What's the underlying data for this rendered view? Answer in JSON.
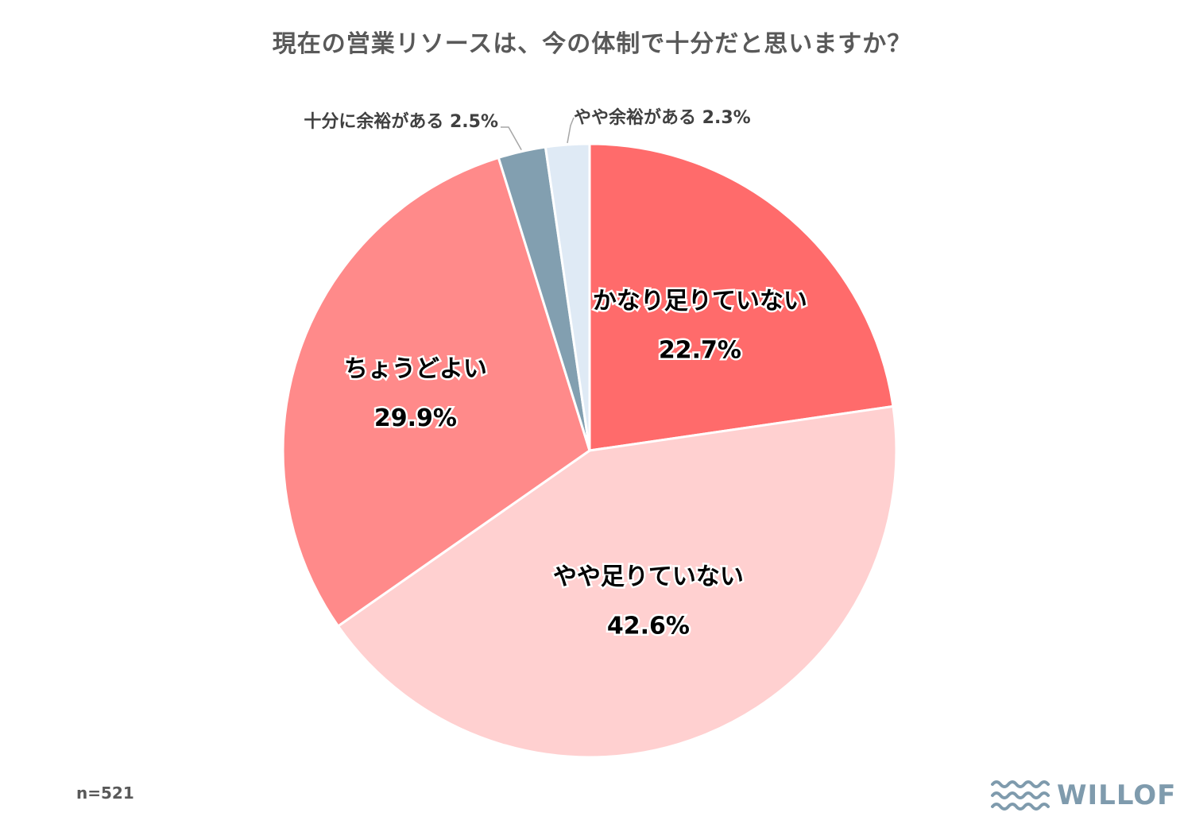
{
  "chart_data": {
    "type": "pie",
    "title": "現在の営業リソースは、今の体制で十分だと思いますか？",
    "start_angle_deg": 0,
    "direction": "clockwise",
    "slices": [
      {
        "label": "かなり足りていない",
        "value": 22.7,
        "value_label": "22.7%",
        "color": "#ff6b6b",
        "label_style": "inside"
      },
      {
        "label": "やや足りていない",
        "value": 42.6,
        "value_label": "42.6%",
        "color": "#ffd0d0",
        "label_style": "inside"
      },
      {
        "label": "ちょうどよい",
        "value": 29.9,
        "value_label": "29.9%",
        "color": "#ff8a8a",
        "label_style": "inside"
      },
      {
        "label": "十分に余裕がある",
        "value": 2.5,
        "value_label": "2.5%",
        "color": "#829fb0",
        "label_style": "outside"
      },
      {
        "label": "やや余裕がある",
        "value": 2.3,
        "value_label": "2.3%",
        "color": "#dfeaf5",
        "label_style": "outside"
      }
    ]
  },
  "footer": {
    "sample_size": "n=521",
    "logo_text": "WILLOF",
    "logo_color": "#7f9bad"
  }
}
